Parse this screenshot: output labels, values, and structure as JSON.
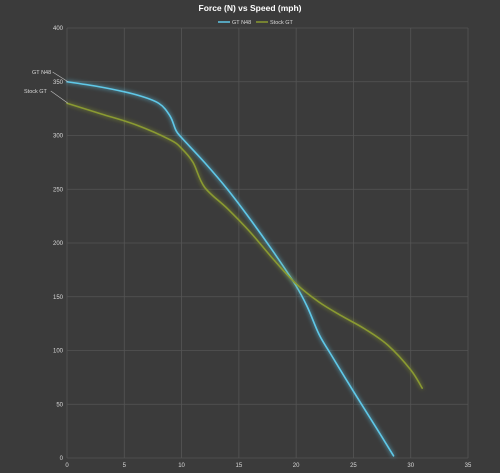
{
  "chart_data": {
    "type": "line",
    "title": "Force (N) vs Speed (mph)",
    "xlabel": "",
    "ylabel": "",
    "xlim": [
      0,
      35
    ],
    "ylim": [
      0,
      400
    ],
    "xticks": [
      0,
      5,
      10,
      15,
      20,
      25,
      30,
      35
    ],
    "yticks": [
      0,
      50,
      100,
      150,
      200,
      250,
      300,
      350,
      400
    ],
    "grid": true,
    "legend_position": "top",
    "series": [
      {
        "name": "GT N48",
        "color": "#5fc8e8",
        "points": [
          [
            0,
            350
          ],
          [
            3,
            345
          ],
          [
            6,
            338
          ],
          [
            8,
            330
          ],
          [
            9,
            318
          ],
          [
            9.5,
            305
          ],
          [
            10,
            298
          ],
          [
            12,
            275
          ],
          [
            14,
            250
          ],
          [
            16,
            222
          ],
          [
            18,
            192
          ],
          [
            20,
            160
          ],
          [
            21,
            140
          ],
          [
            22,
            115
          ],
          [
            23,
            97
          ],
          [
            25,
            62
          ],
          [
            27,
            28
          ],
          [
            28.5,
            2
          ]
        ]
      },
      {
        "name": "Stock GT",
        "color": "#8a9a30",
        "points": [
          [
            0,
            330
          ],
          [
            3,
            320
          ],
          [
            6,
            310
          ],
          [
            9,
            296
          ],
          [
            10,
            288
          ],
          [
            11,
            275
          ],
          [
            12,
            252
          ],
          [
            14,
            232
          ],
          [
            16,
            210
          ],
          [
            18,
            185
          ],
          [
            20,
            162
          ],
          [
            22,
            145
          ],
          [
            24,
            132
          ],
          [
            26,
            120
          ],
          [
            28,
            105
          ],
          [
            30,
            82
          ],
          [
            31,
            65
          ]
        ]
      }
    ],
    "annotations": [
      "GT N48",
      "Stock GT"
    ]
  }
}
